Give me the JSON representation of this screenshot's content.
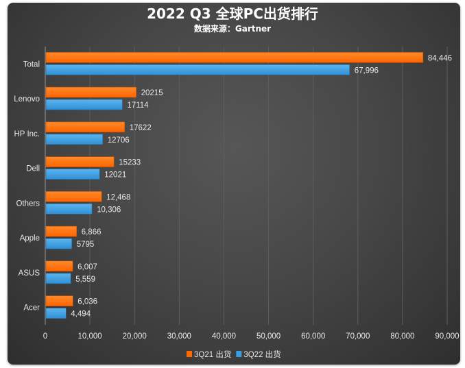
{
  "chart_data": {
    "type": "bar",
    "orientation": "horizontal",
    "title": "2022 Q3 全球PC出货排行",
    "subtitle": "数据来源：Gartner",
    "categories": [
      "Total",
      "Lenovo",
      "HP Inc.",
      "Dell",
      "Others",
      "Apple",
      "ASUS",
      "Acer"
    ],
    "series": [
      {
        "name": "3Q21 出货",
        "color": "#ff6a00",
        "values": [
          84446,
          20215,
          17622,
          15233,
          12468,
          6866,
          6007,
          6036
        ],
        "labels": [
          "84,446",
          "20215",
          "17622",
          "15233",
          "12,468",
          "6,866",
          "6,007",
          "6,036"
        ]
      },
      {
        "name": "3Q22 出货",
        "color": "#3a9de0",
        "values": [
          67996,
          17114,
          12706,
          12021,
          10306,
          5795,
          5559,
          4494
        ],
        "labels": [
          "67,996",
          "17114",
          "12706",
          "12021",
          "10,306",
          "5795",
          "5,559",
          "4,494"
        ]
      }
    ],
    "xlim": [
      0,
      90000
    ],
    "xticks": [
      "0",
      "10,000",
      "20,000",
      "30,000",
      "40,000",
      "50,000",
      "60,000",
      "70,000",
      "80,000",
      "90,000"
    ],
    "grid": true,
    "legend": "bottom",
    "background": "#474747"
  }
}
